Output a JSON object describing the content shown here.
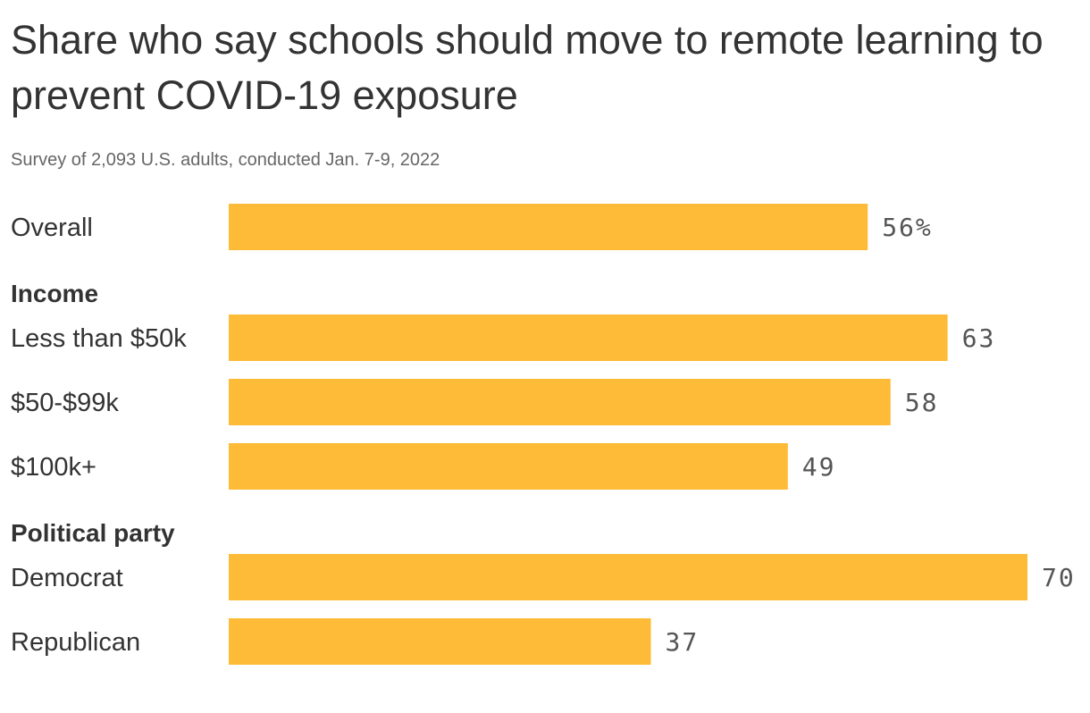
{
  "chart_data": {
    "type": "bar",
    "orientation": "horizontal",
    "title": "Share who say schools should move to remote learning to prevent COVID-19 exposure",
    "subtitle": "Survey of 2,093 U.S. adults, conducted Jan. 7-9, 2022",
    "xlim": [
      0,
      70
    ],
    "bar_color": "#FDBB37",
    "groups": [
      {
        "name": "",
        "bars": [
          {
            "label": "Overall",
            "value": 56,
            "value_label": "56%"
          }
        ]
      },
      {
        "name": "Income",
        "bars": [
          {
            "label": "Less than $50k",
            "value": 63,
            "value_label": "63"
          },
          {
            "label": "$50-$99k",
            "value": 58,
            "value_label": "58"
          },
          {
            "label": "$100k+",
            "value": 49,
            "value_label": "49"
          }
        ]
      },
      {
        "name": "Political party",
        "bars": [
          {
            "label": "Democrat",
            "value": 70,
            "value_label": "70"
          },
          {
            "label": "Republican",
            "value": 37,
            "value_label": "37"
          }
        ]
      }
    ]
  }
}
